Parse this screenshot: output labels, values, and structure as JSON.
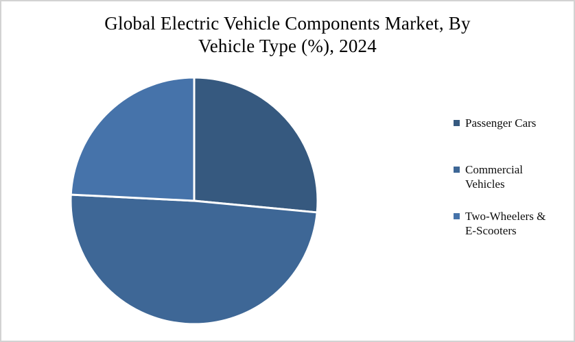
{
  "page": {
    "background_color": "#FFFFFF",
    "border_color": "#D2D2D2"
  },
  "chart_data": {
    "type": "pie",
    "title": "Global Electric Vehicle Components Market, By Vehicle Type (%), 2024",
    "title_lines": [
      "Global Electric Vehicle Components Market, By",
      "Vehicle Type (%), 2024"
    ],
    "categories": [
      "Passenger Cars",
      "Commercial Vehicles",
      "Two-Wheelers & E-Scooters"
    ],
    "values": [
      26.5,
      49.3,
      24.2
    ],
    "unit": "%",
    "colors": [
      "#36597F",
      "#3E6796",
      "#4673AA"
    ],
    "slice_border_color": "#FFFFFF",
    "start_position": "12-o-clock",
    "direction": "clockwise",
    "legend_position": "right",
    "data_labels_shown": false
  }
}
